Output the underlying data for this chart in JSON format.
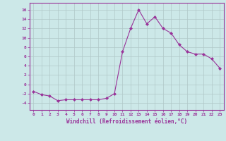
{
  "x": [
    0,
    1,
    2,
    3,
    4,
    5,
    6,
    7,
    8,
    9,
    10,
    11,
    12,
    13,
    14,
    15,
    16,
    17,
    18,
    19,
    20,
    21,
    22,
    23
  ],
  "y": [
    -1.5,
    -2.2,
    -2.5,
    -3.5,
    -3.3,
    -3.3,
    -3.3,
    -3.3,
    -3.3,
    -3.0,
    -2.0,
    7.0,
    12.0,
    16.0,
    13.0,
    14.5,
    12.0,
    11.0,
    8.5,
    7.0,
    6.5,
    6.5,
    5.5,
    3.5
  ],
  "line_color": "#993399",
  "marker": "D",
  "marker_size": 2,
  "bg_color": "#cce8e8",
  "grid_color": "#b0c8c8",
  "xlabel": "Windchill (Refroidissement éolien,°C)",
  "xtick_labels": [
    "0",
    "1",
    "2",
    "3",
    "4",
    "5",
    "6",
    "7",
    "8",
    "9",
    "10",
    "11",
    "12",
    "13",
    "14",
    "15",
    "16",
    "17",
    "18",
    "19",
    "20",
    "21",
    "22",
    "23"
  ],
  "ytick_values": [
    -4,
    -2,
    0,
    2,
    4,
    6,
    8,
    10,
    12,
    14,
    16
  ],
  "xlim": [
    -0.5,
    23.5
  ],
  "ylim": [
    -5.5,
    17.5
  ]
}
